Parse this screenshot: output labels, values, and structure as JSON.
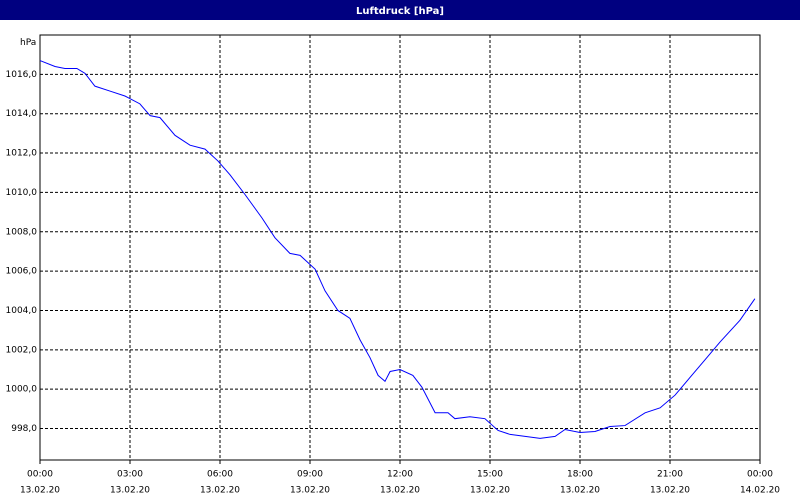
{
  "chart_data": {
    "type": "line",
    "title": "Luftdruck [hPa]",
    "y_unit": "hPa",
    "grid": true,
    "xlim": [
      0,
      24
    ],
    "xticks": [
      {
        "value": 0,
        "label": "00:00"
      },
      {
        "value": 3,
        "label": "03:00"
      },
      {
        "value": 6,
        "label": "06:00"
      },
      {
        "value": 9,
        "label": "09:00"
      },
      {
        "value": 12,
        "label": "12:00"
      },
      {
        "value": 15,
        "label": "15:00"
      },
      {
        "value": 18,
        "label": "18:00"
      },
      {
        "value": 21,
        "label": "21:00"
      },
      {
        "value": 24,
        "label": "00:00"
      }
    ],
    "xtick_dates": [
      "13.02.20",
      "13.02.20",
      "13.02.20",
      "13.02.20",
      "13.02.20",
      "13.02.20",
      "13.02.20",
      "13.02.20",
      "14.02.20"
    ],
    "ylim": [
      996.4,
      1018
    ],
    "yticks": [
      {
        "value": 998,
        "label": "998,0"
      },
      {
        "value": 1000,
        "label": "1000,0"
      },
      {
        "value": 1002,
        "label": "1002,0"
      },
      {
        "value": 1004,
        "label": "1004,0"
      },
      {
        "value": 1006,
        "label": "1006,0"
      },
      {
        "value": 1008,
        "label": "1008,0"
      },
      {
        "value": 1010,
        "label": "1010,0"
      },
      {
        "value": 1012,
        "label": "1012,0"
      },
      {
        "value": 1014,
        "label": "1014,0"
      },
      {
        "value": 1016,
        "label": "1016,0"
      }
    ],
    "series": [
      {
        "name": "Luftdruck",
        "color": "#0000ff",
        "x": [
          0,
          0.5,
          0.83,
          1.23,
          1.5,
          1.83,
          2.33,
          2.83,
          3.33,
          3.67,
          4.0,
          4.5,
          5.0,
          5.5,
          5.93,
          6.33,
          6.83,
          7.4,
          7.83,
          8.33,
          8.67,
          9.17,
          9.5,
          9.93,
          10.33,
          10.67,
          11.0,
          11.27,
          11.5,
          11.67,
          12.0,
          12.43,
          12.73,
          13.17,
          13.6,
          13.83,
          14.33,
          14.83,
          15.27,
          15.67,
          16.17,
          16.67,
          17.17,
          17.5,
          18.0,
          18.5,
          19.0,
          19.5,
          20.17,
          20.67,
          21.17,
          21.67,
          22.17,
          22.67,
          23.33,
          23.83
        ],
        "values": [
          1016.7,
          1016.4,
          1016.3,
          1016.3,
          1016.05,
          1015.4,
          1015.15,
          1014.9,
          1014.5,
          1013.9,
          1013.8,
          1012.9,
          1012.4,
          1012.2,
          1011.6,
          1010.9,
          1009.9,
          1008.7,
          1007.7,
          1006.9,
          1006.8,
          1006.1,
          1005.0,
          1004.0,
          1003.6,
          1002.5,
          1001.6,
          1000.7,
          1000.4,
          1000.9,
          1001.0,
          1000.7,
          1000.1,
          998.8,
          998.8,
          998.5,
          998.6,
          998.5,
          997.9,
          997.7,
          997.6,
          997.5,
          997.6,
          997.95,
          997.8,
          997.85,
          998.1,
          998.15,
          998.8,
          999.05,
          999.7,
          1000.6,
          1001.5,
          1002.4,
          1003.5,
          1004.6
        ]
      }
    ]
  }
}
